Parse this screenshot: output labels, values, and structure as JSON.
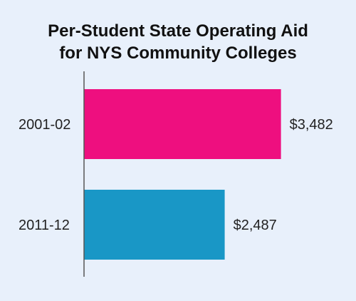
{
  "chart_data": {
    "type": "bar",
    "orientation": "horizontal",
    "title_lines": [
      "Per-Student State Operating Aid",
      "for NYS Community Colleges"
    ],
    "categories": [
      "2001-02",
      "2011-12"
    ],
    "values": [
      3482,
      2487
    ],
    "value_labels": [
      "$3,482",
      "$2,487"
    ],
    "colors": [
      "#ee0f7f",
      "#1997c6"
    ],
    "xlim": [
      0,
      3600
    ],
    "grid": false,
    "legend": "none"
  },
  "colors": {
    "background": "#e8f0fb",
    "axis": "#555555"
  }
}
